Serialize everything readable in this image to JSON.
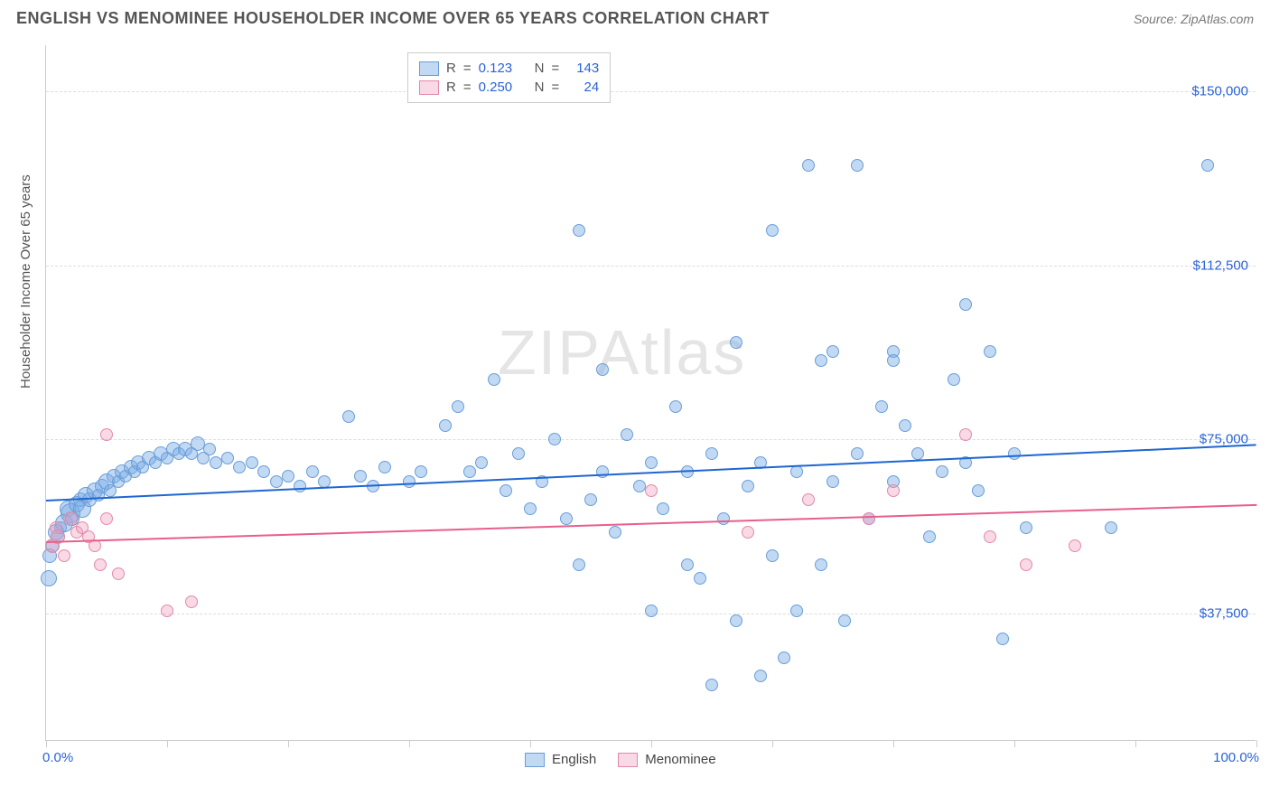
{
  "header": {
    "title": "ENGLISH VS MENOMINEE HOUSEHOLDER INCOME OVER 65 YEARS CORRELATION CHART",
    "source_label": "Source: ",
    "source_name": "ZipAtlas.com"
  },
  "chart": {
    "type": "scatter",
    "ylabel": "Householder Income Over 65 years",
    "watermark": "ZIPAtlas",
    "xlim": [
      0,
      100
    ],
    "ylim": [
      10000,
      160000
    ],
    "xtick_positions": [
      0,
      10,
      20,
      30,
      40,
      50,
      60,
      70,
      80,
      90,
      100
    ],
    "xtick_labels": {
      "0": "0.0%",
      "100": "100.0%"
    },
    "ytick_positions": [
      37500,
      75000,
      112500,
      150000
    ],
    "ytick_labels": [
      "$37,500",
      "$75,000",
      "$112,500",
      "$150,000"
    ],
    "grid_color": "#dddddd",
    "axis_color": "#cccccc",
    "background_color": "#ffffff",
    "series": [
      {
        "name": "English",
        "fill": "rgba(120,170,230,0.45)",
        "stroke": "#6a9ed6",
        "trend_color": "#1e66d0",
        "trend": {
          "y_start": 62000,
          "y_end": 74000
        },
        "R": "0.123",
        "N": "143",
        "points": [
          [
            0.2,
            45000,
            18
          ],
          [
            0.3,
            50000,
            16
          ],
          [
            0.5,
            52000,
            15
          ],
          [
            0.8,
            55000,
            18
          ],
          [
            1.0,
            54000,
            16
          ],
          [
            1.2,
            56000,
            14
          ],
          [
            1.5,
            57000,
            20
          ],
          [
            1.8,
            60000,
            18
          ],
          [
            2.0,
            59000,
            22
          ],
          [
            2.2,
            58000,
            16
          ],
          [
            2.5,
            61000,
            18
          ],
          [
            2.8,
            62000,
            16
          ],
          [
            3.0,
            60000,
            20
          ],
          [
            3.3,
            63000,
            18
          ],
          [
            3.6,
            62000,
            16
          ],
          [
            4.0,
            64000,
            18
          ],
          [
            4.3,
            63000,
            14
          ],
          [
            4.6,
            65000,
            16
          ],
          [
            5.0,
            66000,
            18
          ],
          [
            5.3,
            64000,
            14
          ],
          [
            5.6,
            67000,
            16
          ],
          [
            6.0,
            66000,
            14
          ],
          [
            6.3,
            68000,
            16
          ],
          [
            6.6,
            67000,
            14
          ],
          [
            7.0,
            69000,
            16
          ],
          [
            7.3,
            68000,
            14
          ],
          [
            7.6,
            70000,
            16
          ],
          [
            8.0,
            69000,
            14
          ],
          [
            8.5,
            71000,
            16
          ],
          [
            9.0,
            70000,
            14
          ],
          [
            9.5,
            72000,
            16
          ],
          [
            10.0,
            71000,
            14
          ],
          [
            10.5,
            73000,
            16
          ],
          [
            11.0,
            72000,
            14
          ],
          [
            11.5,
            73000,
            16
          ],
          [
            12.0,
            72000,
            14
          ],
          [
            12.5,
            74000,
            16
          ],
          [
            13.0,
            71000,
            14
          ],
          [
            13.5,
            73000,
            14
          ],
          [
            14.0,
            70000,
            14
          ],
          [
            15.0,
            71000,
            14
          ],
          [
            16.0,
            69000,
            14
          ],
          [
            17.0,
            70000,
            14
          ],
          [
            18.0,
            68000,
            14
          ],
          [
            19.0,
            66000,
            14
          ],
          [
            20.0,
            67000,
            14
          ],
          [
            21.0,
            65000,
            14
          ],
          [
            22.0,
            68000,
            14
          ],
          [
            23.0,
            66000,
            14
          ],
          [
            25.0,
            80000,
            14
          ],
          [
            26.0,
            67000,
            14
          ],
          [
            27.0,
            65000,
            14
          ],
          [
            28.0,
            69000,
            14
          ],
          [
            30.0,
            66000,
            14
          ],
          [
            31.0,
            68000,
            14
          ],
          [
            33.0,
            78000,
            14
          ],
          [
            34.0,
            82000,
            14
          ],
          [
            35.0,
            68000,
            14
          ],
          [
            36.0,
            70000,
            14
          ],
          [
            37.0,
            88000,
            14
          ],
          [
            38.0,
            64000,
            14
          ],
          [
            39.0,
            72000,
            14
          ],
          [
            40.0,
            60000,
            14
          ],
          [
            41.0,
            66000,
            14
          ],
          [
            42.0,
            75000,
            14
          ],
          [
            43.0,
            58000,
            14
          ],
          [
            44.0,
            120000,
            14
          ],
          [
            44.0,
            48000,
            14
          ],
          [
            45.0,
            62000,
            14
          ],
          [
            46.0,
            68000,
            14
          ],
          [
            46.0,
            90000,
            14
          ],
          [
            47.0,
            55000,
            14
          ],
          [
            48.0,
            76000,
            14
          ],
          [
            49.0,
            65000,
            14
          ],
          [
            50.0,
            38000,
            14
          ],
          [
            50.0,
            70000,
            14
          ],
          [
            51.0,
            60000,
            14
          ],
          [
            52.0,
            82000,
            14
          ],
          [
            53.0,
            48000,
            14
          ],
          [
            53.0,
            68000,
            14
          ],
          [
            54.0,
            45000,
            14
          ],
          [
            55.0,
            22000,
            14
          ],
          [
            55.0,
            72000,
            14
          ],
          [
            56.0,
            58000,
            14
          ],
          [
            57.0,
            96000,
            14
          ],
          [
            57.0,
            36000,
            14
          ],
          [
            58.0,
            65000,
            14
          ],
          [
            59.0,
            24000,
            14
          ],
          [
            59.0,
            70000,
            14
          ],
          [
            60.0,
            120000,
            14
          ],
          [
            60.0,
            50000,
            14
          ],
          [
            61.0,
            28000,
            14
          ],
          [
            62.0,
            68000,
            14
          ],
          [
            62.0,
            38000,
            14
          ],
          [
            63.0,
            134000,
            14
          ],
          [
            64.0,
            92000,
            14
          ],
          [
            64.0,
            48000,
            14
          ],
          [
            65.0,
            94000,
            14
          ],
          [
            65.0,
            66000,
            14
          ],
          [
            66.0,
            36000,
            14
          ],
          [
            67.0,
            134000,
            14
          ],
          [
            67.0,
            72000,
            14
          ],
          [
            68.0,
            58000,
            14
          ],
          [
            69.0,
            82000,
            14
          ],
          [
            70.0,
            94000,
            14
          ],
          [
            70.0,
            92000,
            14
          ],
          [
            70.0,
            66000,
            14
          ],
          [
            71.0,
            78000,
            14
          ],
          [
            72.0,
            72000,
            14
          ],
          [
            73.0,
            54000,
            14
          ],
          [
            74.0,
            68000,
            14
          ],
          [
            75.0,
            88000,
            14
          ],
          [
            76.0,
            104000,
            14
          ],
          [
            76.0,
            70000,
            14
          ],
          [
            77.0,
            64000,
            14
          ],
          [
            78.0,
            94000,
            14
          ],
          [
            79.0,
            32000,
            14
          ],
          [
            80.0,
            72000,
            14
          ],
          [
            81.0,
            56000,
            14
          ],
          [
            88.0,
            56000,
            14
          ],
          [
            96.0,
            134000,
            14
          ]
        ]
      },
      {
        "name": "Menominee",
        "fill": "rgba(240,160,190,0.40)",
        "stroke": "#e28aa8",
        "trend_color": "#e85f8a",
        "trend": {
          "y_start": 53000,
          "y_end": 61000
        },
        "R": "0.250",
        "N": "24",
        "points": [
          [
            0.5,
            52000,
            16
          ],
          [
            0.8,
            56000,
            14
          ],
          [
            1.0,
            54000,
            16
          ],
          [
            1.5,
            50000,
            14
          ],
          [
            2.0,
            58000,
            16
          ],
          [
            2.5,
            55000,
            14
          ],
          [
            3.0,
            56000,
            14
          ],
          [
            3.5,
            54000,
            14
          ],
          [
            4.0,
            52000,
            14
          ],
          [
            4.5,
            48000,
            14
          ],
          [
            5.0,
            58000,
            14
          ],
          [
            5.0,
            76000,
            14
          ],
          [
            6.0,
            46000,
            14
          ],
          [
            10.0,
            38000,
            14
          ],
          [
            12.0,
            40000,
            14
          ],
          [
            50.0,
            64000,
            14
          ],
          [
            58.0,
            55000,
            14
          ],
          [
            63.0,
            62000,
            14
          ],
          [
            68.0,
            58000,
            14
          ],
          [
            70.0,
            64000,
            14
          ],
          [
            76.0,
            76000,
            14
          ],
          [
            78.0,
            54000,
            14
          ],
          [
            81.0,
            48000,
            14
          ],
          [
            85.0,
            52000,
            14
          ]
        ]
      }
    ],
    "legend_top": {
      "r_label": "R",
      "n_label": "N",
      "eq": "="
    },
    "legend_bottom": {
      "items": [
        "English",
        "Menominee"
      ]
    }
  }
}
